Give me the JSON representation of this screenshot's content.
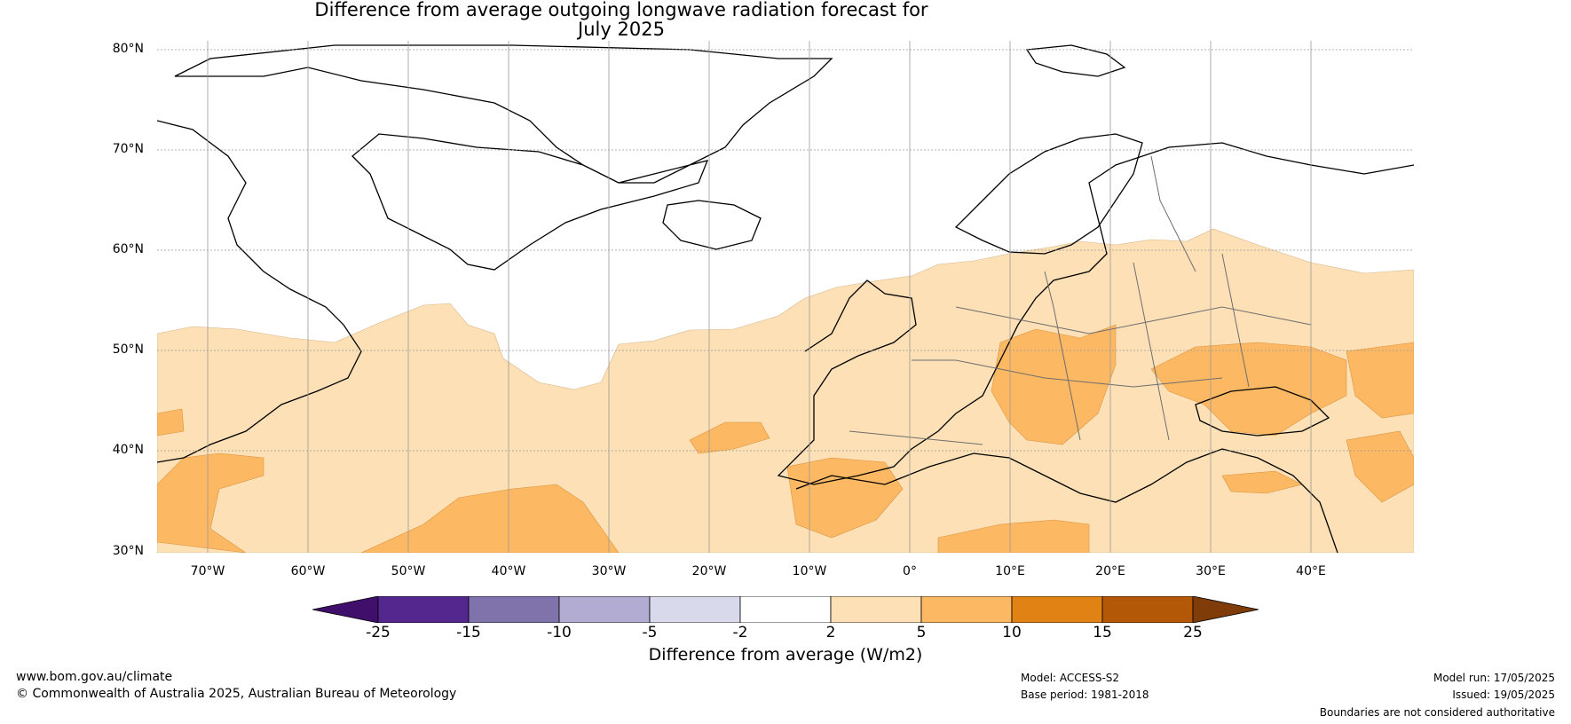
{
  "title_line1": "Difference from average outgoing longwave radiation forecast for",
  "title_line2": "July 2025",
  "lat_labels": [
    "80°N",
    "70°N",
    "60°N",
    "50°N",
    "40°N",
    "30°N"
  ],
  "lon_labels": [
    "70°W",
    "60°W",
    "50°W",
    "40°W",
    "30°W",
    "20°W",
    "10°W",
    "0°",
    "10°E",
    "20°E",
    "30°E",
    "40°E"
  ],
  "map_extent": {
    "lon_min": -75,
    "lon_max": 50,
    "lat_min": 30,
    "lat_max": 81
  },
  "colorbar": {
    "ticks": [
      "-25",
      "-15",
      "-10",
      "-5",
      "-2",
      "2",
      "5",
      "10",
      "15",
      "25"
    ],
    "colors": [
      "#3f0f6b",
      "#54278f",
      "#8073ac",
      "#b2abd2",
      "#d8daeb",
      "#ffffff",
      "#fee0b6",
      "#fdb863",
      "#e08214",
      "#b35806",
      "#7f3b08"
    ],
    "label": "Difference from average (W/m2)"
  },
  "footer": {
    "website": "www.bom.gov.au/climate",
    "copyright": "© Commonwealth of Australia 2025, Australian Bureau of Meteorology",
    "model": "Model: ACCESS-S2",
    "base_period": "Base period: 1981-2018",
    "model_run": "Model run: 17/05/2025",
    "issued": "Issued: 19/05/2025",
    "disclaimer": "Boundaries are not considered authoritative"
  }
}
